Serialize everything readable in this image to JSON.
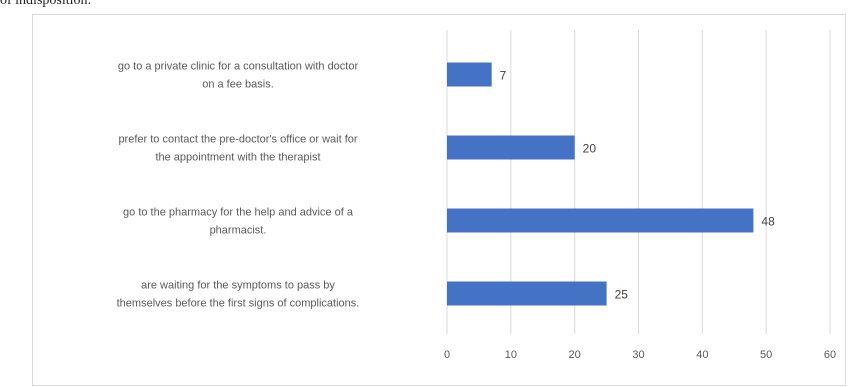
{
  "page": {
    "caption": "of indisposition:"
  },
  "chart_data": {
    "type": "bar",
    "orientation": "horizontal",
    "categories": [
      [
        "go to a private clinic for a consultation with doctor",
        "on a fee basis."
      ],
      [
        "prefer to contact the pre-doctor's office or wait for",
        "the appointment with the therapist"
      ],
      [
        "go to the pharmacy for the help and advice of a",
        "pharmacist."
      ],
      [
        "are waiting for the symptoms to pass by",
        "themselves before the first signs of complications."
      ]
    ],
    "values": [
      7,
      20,
      48,
      25
    ],
    "data_labels": [
      "7",
      "20",
      "48",
      "25"
    ],
    "xlim": [
      0,
      60
    ],
    "xticks": [
      0,
      10,
      20,
      30,
      40,
      50,
      60
    ],
    "xtick_labels": [
      "0",
      "10",
      "20",
      "30",
      "40",
      "50",
      "60"
    ],
    "grid": true,
    "legend": "none",
    "bar_color": "#4472c4",
    "grid_color": "#d9d9d9",
    "title": "",
    "xlabel": "",
    "ylabel": ""
  }
}
